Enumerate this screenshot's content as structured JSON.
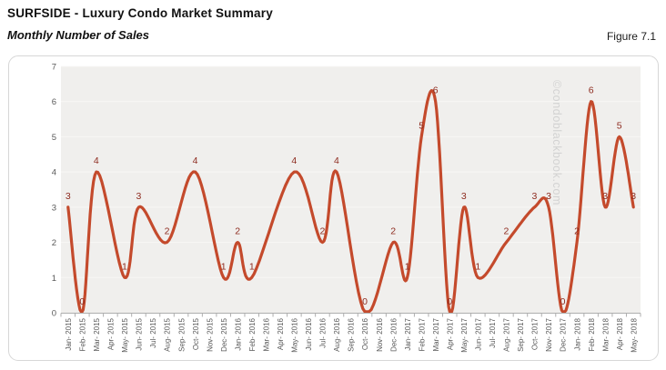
{
  "header": {
    "title": "SURFSIDE - Luxury Condo Market Summary",
    "subtitle": "Monthly Number of Sales",
    "figure_label": "Figure 7.1"
  },
  "chart_data": {
    "type": "line",
    "smooth": true,
    "series_name": "Monthly Number of Sales",
    "categories": [
      "Jan- 2015",
      "Feb- 2015",
      "Mar- 2015",
      "Apr- 2015",
      "May- 2015",
      "Jun- 2015",
      "Jul- 2015",
      "Aug- 2015",
      "Sep- 2015",
      "Oct- 2015",
      "Nov- 2015",
      "Dec- 2015",
      "Jan- 2016",
      "Feb- 2016",
      "Mar- 2016",
      "Apr- 2016",
      "May- 2016",
      "Jun- 2016",
      "Jul- 2016",
      "Aug- 2016",
      "Sep- 2016",
      "Oct- 2016",
      "Nov- 2016",
      "Dec- 2016",
      "Jan- 2017",
      "Feb- 2017",
      "Mar- 2017",
      "Apr- 2017",
      "May- 2017",
      "Jun- 2017",
      "Jul- 2017",
      "Aug- 2017",
      "Sep- 2017",
      "Oct- 2017",
      "Nov- 2017",
      "Dec- 2017",
      "Jan- 2018",
      "Feb- 2018",
      "Mar- 2018",
      "Apr- 2018",
      "May- 2018"
    ],
    "values": [
      3,
      0,
      4,
      null,
      1,
      3,
      null,
      2,
      null,
      4,
      null,
      1,
      2,
      1,
      null,
      null,
      4,
      null,
      2,
      4,
      null,
      0,
      null,
      2,
      1,
      5,
      6,
      0,
      3,
      1,
      null,
      2,
      null,
      3,
      3,
      0,
      2,
      6,
      3,
      5,
      3
    ],
    "point_labels_visible": true,
    "ylim": [
      0,
      7
    ],
    "yticks": [
      0,
      1,
      2,
      3,
      4,
      5,
      6,
      7
    ],
    "x_label_rotation": -90,
    "legend": "none",
    "grid": "subtle horizontal",
    "watermark": "©condoblackbook.com",
    "colors": {
      "line": "#c44a2c",
      "point_label": "#8e2c20",
      "axis_text": "#595959",
      "axis_line": "#aeaeae",
      "plot_bg": "#f0efed",
      "gridline": "#fafaf8",
      "panel_border": "#d7d7d7",
      "watermark_text": "#c9c9c9"
    }
  }
}
